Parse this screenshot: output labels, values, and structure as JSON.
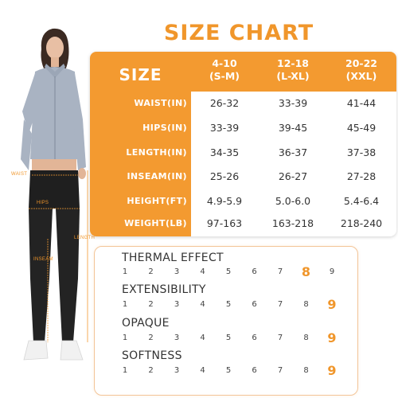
{
  "title": "SIZE CHART",
  "figure_labels": {
    "waist": "WAIST",
    "hips": "HIPS",
    "length": "LENGTH",
    "inseam": "INSEAM"
  },
  "size_table": {
    "corner_label": "SIZE",
    "columns": [
      {
        "range": "4-10",
        "size": "(S-M)"
      },
      {
        "range": "12-18",
        "size": "(L-XL)"
      },
      {
        "range": "20-22",
        "size": "(XXL)"
      }
    ],
    "rows": [
      {
        "label": "WAIST(IN)",
        "values": [
          "26-32",
          "33-39",
          "41-44"
        ]
      },
      {
        "label": "HIPS(IN)",
        "values": [
          "33-39",
          "39-45",
          "45-49"
        ]
      },
      {
        "label": "LENGTH(IN)",
        "values": [
          "34-35",
          "36-37",
          "37-38"
        ]
      },
      {
        "label": "INSEAM(IN)",
        "values": [
          "25-26",
          "26-27",
          "27-28"
        ]
      },
      {
        "label": "HEIGHT(FT)",
        "values": [
          "4.9-5.9",
          "5.0-6.0",
          "5.4-6.4"
        ]
      },
      {
        "label": "WEIGHT(LB)",
        "values": [
          "97-163",
          "163-218",
          "218-240"
        ]
      }
    ]
  },
  "ratings": [
    {
      "title": "THERMAL EFFECT",
      "scale": [
        "1",
        "2",
        "3",
        "4",
        "5",
        "6",
        "7",
        "8",
        "9"
      ],
      "selected": 8
    },
    {
      "title": "EXTENSIBILITY",
      "scale": [
        "1",
        "2",
        "3",
        "4",
        "5",
        "6",
        "7",
        "8",
        "9"
      ],
      "selected": 9
    },
    {
      "title": "OPAQUE",
      "scale": [
        "1",
        "2",
        "3",
        "4",
        "5",
        "6",
        "7",
        "8",
        "9"
      ],
      "selected": 9
    },
    {
      "title": "SOFTNESS",
      "scale": [
        "1",
        "2",
        "3",
        "4",
        "5",
        "6",
        "7",
        "8",
        "9"
      ],
      "selected": 9
    }
  ],
  "colors": {
    "accent": "#f39a30",
    "text": "#333333"
  }
}
